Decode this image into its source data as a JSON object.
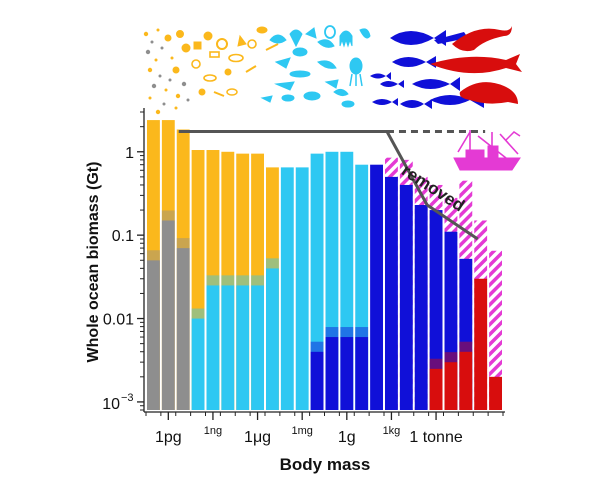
{
  "chart_data": {
    "type": "bar",
    "scale": "log",
    "xlabel": "Body mass",
    "ylabel": "Whole ocean biomass (Gt)",
    "ylim": [
      0.0008,
      3
    ],
    "y_ticks": [
      {
        "value": 0.001,
        "base": "10",
        "exp": "−3"
      },
      {
        "value": 0.01,
        "label": "0.01"
      },
      {
        "value": 0.1,
        "label": "0.1"
      },
      {
        "value": 1,
        "label": "1"
      }
    ],
    "x_ticks": [
      {
        "bin": 1.5,
        "label": "1pg",
        "size": "big"
      },
      {
        "bin": 4.5,
        "label": "1ng",
        "size": "small"
      },
      {
        "bin": 7.5,
        "label": "1μg",
        "size": "big"
      },
      {
        "bin": 10.5,
        "label": "1mg",
        "size": "small"
      },
      {
        "bin": 13.5,
        "label": "1g",
        "size": "big"
      },
      {
        "bin": 16.5,
        "label": "1kg",
        "size": "small"
      },
      {
        "bin": 19.5,
        "label": "1 tonne",
        "size": "big"
      }
    ],
    "bins": [
      {
        "total": 2.4,
        "base_color": "#fbb81c",
        "layers": [
          {
            "color": "#8e8e8e",
            "top": 0.05
          }
        ]
      },
      {
        "total": 2.4,
        "base_color": "#fbb81c",
        "layers": [
          {
            "color": "#8e8e8e",
            "top": 0.15
          }
        ]
      },
      {
        "total": 1.85,
        "base_color": "#fbb81c",
        "layers": [
          {
            "color": "#8e8e8e",
            "top": 0.07
          }
        ]
      },
      {
        "total": 1.05,
        "base_color": "#fbb81c",
        "layers": [
          {
            "color": "#2ec8f2",
            "top": 0.01
          }
        ]
      },
      {
        "total": 1.05,
        "base_color": "#fbb81c",
        "layers": [
          {
            "color": "#2ec8f2",
            "top": 0.025
          }
        ]
      },
      {
        "total": 1.0,
        "base_color": "#fbb81c",
        "layers": [
          {
            "color": "#2ec8f2",
            "top": 0.025
          }
        ]
      },
      {
        "total": 0.95,
        "base_color": "#fbb81c",
        "layers": [
          {
            "color": "#2ec8f2",
            "top": 0.025
          }
        ]
      },
      {
        "total": 0.95,
        "base_color": "#fbb81c",
        "layers": [
          {
            "color": "#2ec8f2",
            "top": 0.025
          }
        ]
      },
      {
        "total": 0.65,
        "base_color": "#fbb81c",
        "layers": [
          {
            "color": "#2ec8f2",
            "top": 0.04
          }
        ]
      },
      {
        "total": 0.65,
        "base_color": "#2ec8f2",
        "layers": []
      },
      {
        "total": 0.65,
        "base_color": "#2ec8f2",
        "layers": []
      },
      {
        "total": 0.95,
        "base_color": "#2ec8f2",
        "layers": [
          {
            "color": "#1010d8",
            "top": 0.004
          }
        ]
      },
      {
        "total": 1.0,
        "base_color": "#2ec8f2",
        "layers": [
          {
            "color": "#1010d8",
            "top": 0.006
          }
        ]
      },
      {
        "total": 1.0,
        "base_color": "#2ec8f2",
        "layers": [
          {
            "color": "#1010d8",
            "top": 0.006
          }
        ]
      },
      {
        "total": 0.7,
        "base_color": "#2ec8f2",
        "layers": [
          {
            "color": "#1010d8",
            "top": 0.006
          }
        ]
      },
      {
        "total": 0.7,
        "base_color": "#1010d8",
        "layers": []
      },
      {
        "total": 0.5,
        "base_color": "#1010d8",
        "removed": 0.85,
        "layers": []
      },
      {
        "total": 0.4,
        "base_color": "#1010d8",
        "removed": 0.8,
        "layers": []
      },
      {
        "total": 0.23,
        "base_color": "#1010d8",
        "removed": 0.5,
        "layers": []
      },
      {
        "total": 0.2,
        "base_color": "#1010d8",
        "removed": 0.4,
        "layers": [
          {
            "color": "#d80d0d",
            "top": 0.0025
          }
        ]
      },
      {
        "total": 0.11,
        "base_color": "#1010d8",
        "removed": 0.28,
        "layers": [
          {
            "color": "#d80d0d",
            "top": 0.003
          }
        ]
      },
      {
        "total": 0.052,
        "base_color": "#1010d8",
        "removed": 0.45,
        "layers": [
          {
            "color": "#d80d0d",
            "top": 0.004
          }
        ]
      },
      {
        "total": 0.03,
        "base_color": "#d80d0d",
        "removed": 0.15,
        "layers": []
      },
      {
        "total": 0.002,
        "base_color": "#d80d0d",
        "removed": 0.065,
        "layers": []
      }
    ],
    "reference_line": {
      "solid": [
        [
          2.2,
          1.75
        ],
        [
          16.2,
          1.75
        ],
        [
          18.9,
          0.23
        ]
      ],
      "solid2": [
        [
          18.9,
          0.23
        ],
        [
          22.3,
          0.09
        ]
      ],
      "dashed": [
        [
          16.2,
          1.75
        ],
        [
          22.8,
          1.75
        ]
      ]
    },
    "annotation": "removed",
    "colors": {
      "bacteria": "#8e8e8e",
      "phytoplankton": "#fbb81c",
      "zooplankton": "#2ec8f2",
      "fish": "#1010d8",
      "mammals": "#d80d0d",
      "fishing": "#e43ad4"
    },
    "icons": [
      "bacteria-dots-icon",
      "phytoplankton-icon",
      "zooplankton-icon",
      "fish-icon",
      "whale-icon",
      "dolphin-icon",
      "manatee-icon",
      "trawler-icon"
    ]
  }
}
